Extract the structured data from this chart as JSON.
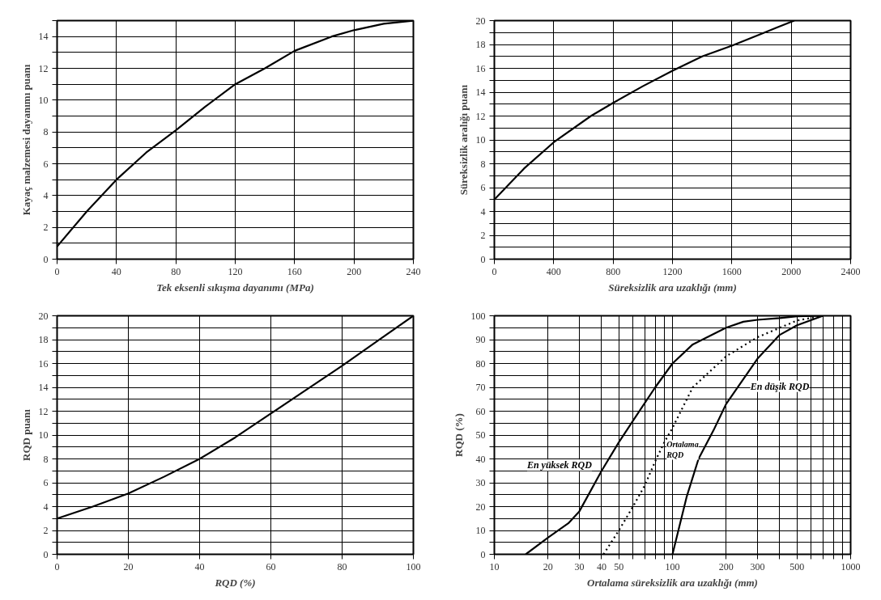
{
  "chart_data": [
    {
      "type": "line",
      "xlabel": "Tek eksenli sıkışma dayanımı (MPa)",
      "ylabel": "Kayaç malzemesi dayanımı puanı",
      "xlim": [
        0,
        240
      ],
      "ylim": [
        0,
        15
      ],
      "xticks": [
        0,
        40,
        80,
        120,
        160,
        200,
        240
      ],
      "yticks": [
        0,
        {
          "value": 1,
          "label": null
        },
        2,
        {
          "value": 3,
          "label": null
        },
        4,
        {
          "value": 5,
          "label": null
        },
        6,
        {
          "value": 7,
          "label": null
        },
        8,
        {
          "value": 9,
          "label": null
        },
        10,
        {
          "value": 11,
          "label": null
        },
        12,
        {
          "value": 13,
          "label": null
        },
        14,
        {
          "value": 15,
          "label": null
        }
      ],
      "grid": true,
      "line_style": "solid",
      "series": [
        {
          "color": "#000000",
          "x": [
            0,
            20,
            40,
            60,
            80,
            100,
            120,
            140,
            160,
            185,
            200,
            220,
            240
          ],
          "values": [
            0.8,
            3,
            5,
            6.7,
            8.1,
            9.6,
            11,
            12,
            13.1,
            14,
            14.4,
            14.8,
            15
          ]
        }
      ]
    },
    {
      "type": "line",
      "xlabel": "Süreksizlik ara uzaklığı (mm)",
      "ylabel": "Süreksizlik aralığı puanı",
      "xlim": [
        0,
        2400
      ],
      "ylim": [
        0,
        20
      ],
      "xticks": [
        0,
        400,
        800,
        1200,
        1600,
        2000,
        2400
      ],
      "yticks": [
        0,
        {
          "value": 1,
          "label": null
        },
        2,
        {
          "value": 3,
          "label": null
        },
        4,
        {
          "value": 5,
          "label": null
        },
        6,
        {
          "value": 7,
          "label": null
        },
        8,
        {
          "value": 9,
          "label": null
        },
        10,
        {
          "value": 11,
          "label": null
        },
        12,
        {
          "value": 13,
          "label": null
        },
        14,
        {
          "value": 15,
          "label": null
        },
        16,
        {
          "value": 17,
          "label": null
        },
        18,
        {
          "value": 19,
          "label": null
        },
        20
      ],
      "grid": true,
      "line_style": "solid",
      "series": [
        {
          "color": "#000000",
          "x": [
            0,
            200,
            400,
            650,
            800,
            1000,
            1200,
            1400,
            1600,
            1800,
            1900,
            2020
          ],
          "values": [
            5,
            7.6,
            9.8,
            12,
            13.1,
            14.5,
            15.8,
            17,
            17.9,
            18.9,
            19.4,
            20
          ]
        }
      ]
    },
    {
      "type": "line",
      "xlabel": "RQD (%)",
      "ylabel": "RQD puanı",
      "xlim": [
        0,
        100
      ],
      "ylim": [
        0,
        20
      ],
      "xticks": [
        0,
        20,
        40,
        60,
        80,
        100
      ],
      "yticks": [
        0,
        {
          "value": 1,
          "label": null
        },
        2,
        {
          "value": 3,
          "label": null
        },
        4,
        {
          "value": 5,
          "label": null
        },
        6,
        {
          "value": 7,
          "label": null
        },
        8,
        {
          "value": 9,
          "label": null
        },
        10,
        {
          "value": 11,
          "label": null
        },
        12,
        {
          "value": 13,
          "label": null
        },
        14,
        {
          "value": 15,
          "label": null
        },
        16,
        {
          "value": 17,
          "label": null
        },
        18,
        {
          "value": 19,
          "label": null
        },
        20
      ],
      "grid": true,
      "line_style": "solid",
      "series": [
        {
          "color": "#000000",
          "x": [
            0,
            10,
            20,
            30,
            40,
            50,
            55,
            60,
            70,
            80,
            90,
            100
          ],
          "values": [
            3,
            4,
            5.1,
            6.5,
            8,
            9.8,
            10.8,
            11.8,
            13.8,
            15.8,
            17.9,
            20
          ]
        }
      ]
    },
    {
      "type": "line",
      "xlabel": "Ortalama süreksizlik ara uzaklığı (mm)",
      "ylabel": "RQD (%)",
      "log": "x",
      "xlim": [
        10,
        1000
      ],
      "ylim": [
        0,
        100
      ],
      "xticks": [
        10,
        20,
        30,
        40,
        50,
        {
          "value": 60,
          "label": null
        },
        {
          "value": 70,
          "label": null
        },
        {
          "value": 80,
          "label": null
        },
        {
          "value": 90,
          "label": null
        },
        100,
        200,
        300,
        {
          "value": 400,
          "label": null
        },
        500,
        {
          "value": 600,
          "label": null
        },
        {
          "value": 700,
          "label": null
        },
        {
          "value": 800,
          "label": null
        },
        {
          "value": 900,
          "label": null
        },
        1000
      ],
      "yticks": [
        0,
        {
          "value": 5,
          "label": null
        },
        10,
        {
          "value": 15,
          "label": null
        },
        20,
        {
          "value": 25,
          "label": null
        },
        30,
        {
          "value": 35,
          "label": null
        },
        40,
        {
          "value": 45,
          "label": null
        },
        50,
        {
          "value": 55,
          "label": null
        },
        60,
        {
          "value": 65,
          "label": null
        },
        70,
        {
          "value": 75,
          "label": null
        },
        80,
        {
          "value": 85,
          "label": null
        },
        90,
        {
          "value": 95,
          "label": null
        },
        100
      ],
      "grid": true,
      "line_style": "solid",
      "series": [
        {
          "name": "En yüksek RQD",
          "color": "#000000",
          "x": [
            15,
            20,
            26,
            30,
            40,
            50,
            60,
            80,
            100,
            130,
            200,
            250,
            300,
            400,
            500,
            700
          ],
          "values": [
            0,
            7,
            13,
            18,
            35,
            47,
            56,
            70,
            80,
            88,
            95,
            97.5,
            98.3,
            99,
            99.8,
            100
          ]
        },
        {
          "name": "Ortalama RQD",
          "color": "#000000",
          "line_style": "dotted",
          "x": [
            41,
            50,
            60,
            70,
            80,
            90,
            100,
            130,
            200,
            300,
            500,
            700
          ],
          "values": [
            0,
            10,
            20,
            29,
            39,
            47,
            53,
            70,
            83,
            91,
            98,
            100
          ]
        },
        {
          "name": "En düşik RQD",
          "color": "#000000",
          "x": [
            100,
            120,
            140,
            170,
            200,
            300,
            400,
            500,
            700
          ],
          "values": [
            0,
            24,
            40,
            52,
            63,
            82,
            92,
            96,
            100
          ]
        }
      ]
    }
  ]
}
